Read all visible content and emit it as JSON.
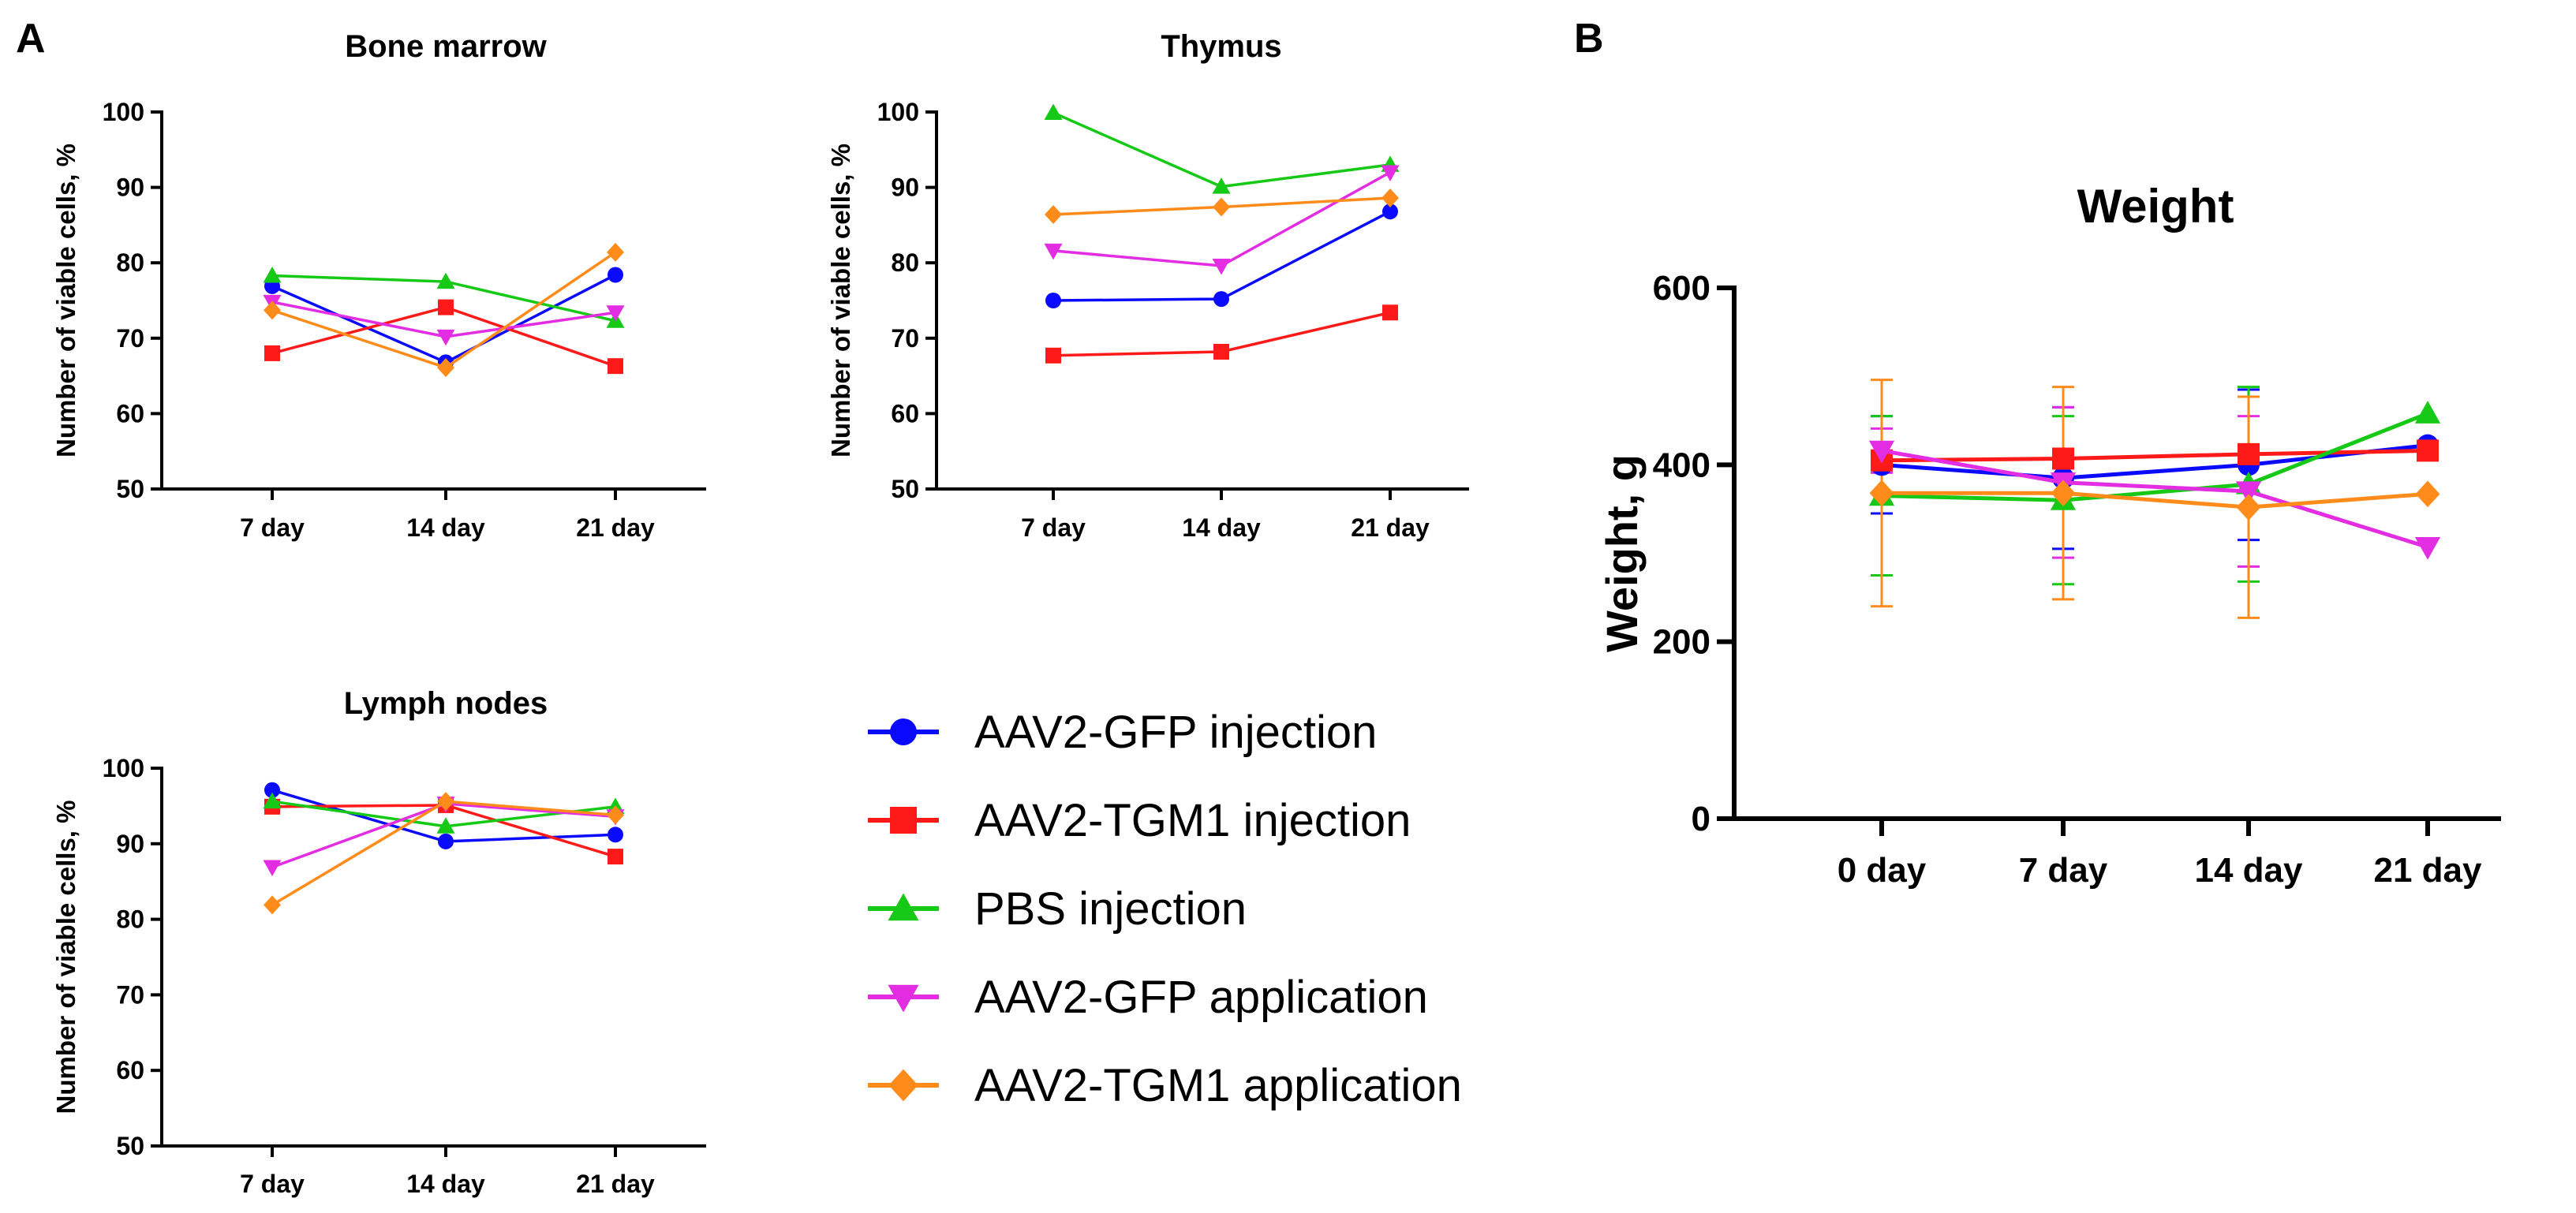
{
  "panels": {
    "a": "A",
    "b": "B"
  },
  "chart_data": [
    {
      "id": "bm",
      "type": "line",
      "title": "Bone marrow",
      "xlabel": "",
      "ylabel": "Number of viable cells, %",
      "categories": [
        "7 day",
        "14 day",
        "21 day"
      ],
      "ylim": [
        50,
        100
      ],
      "yticks": [
        50,
        60,
        70,
        80,
        90,
        100
      ],
      "series": [
        {
          "name": "AAV2-GFP injection",
          "values": [
            76.9,
            66.8,
            78.4
          ]
        },
        {
          "name": "AAV2-TGM1 injection",
          "values": [
            68.0,
            74.1,
            66.3
          ]
        },
        {
          "name": "PBS injection",
          "values": [
            78.3,
            77.5,
            72.3
          ]
        },
        {
          "name": "AAV2-GFP application",
          "values": [
            74.8,
            70.2,
            73.4
          ]
        },
        {
          "name": "AAV2-TGM1 application",
          "values": [
            73.7,
            66.1,
            81.4
          ]
        }
      ]
    },
    {
      "id": "th",
      "type": "line",
      "title": "Thymus",
      "xlabel": "",
      "ylabel": "Number of viable cells, %",
      "categories": [
        "7 day",
        "14 day",
        "21 day"
      ],
      "ylim": [
        50,
        100
      ],
      "yticks": [
        50,
        60,
        70,
        80,
        90,
        100
      ],
      "series": [
        {
          "name": "AAV2-GFP injection",
          "values": [
            75.0,
            75.2,
            86.8
          ]
        },
        {
          "name": "AAV2-TGM1 injection",
          "values": [
            67.7,
            68.2,
            73.4
          ]
        },
        {
          "name": "PBS injection",
          "values": [
            99.9,
            90.1,
            93.0
          ]
        },
        {
          "name": "AAV2-GFP application",
          "values": [
            81.6,
            79.6,
            92.0
          ]
        },
        {
          "name": "AAV2-TGM1 application",
          "values": [
            86.4,
            87.4,
            88.6
          ]
        }
      ]
    },
    {
      "id": "ln",
      "type": "line",
      "title": "Lymph nodes",
      "xlabel": "",
      "ylabel": "Number of viable cells, %",
      "categories": [
        "7 day",
        "14 day",
        "21 day"
      ],
      "ylim": [
        50,
        100
      ],
      "yticks": [
        50,
        60,
        70,
        80,
        90,
        100
      ],
      "series": [
        {
          "name": "AAV2-GFP injection",
          "values": [
            97.1,
            90.3,
            91.2
          ]
        },
        {
          "name": "AAV2-TGM1 injection",
          "values": [
            94.9,
            95.1,
            88.3
          ]
        },
        {
          "name": "PBS injection",
          "values": [
            95.6,
            92.3,
            94.9
          ]
        },
        {
          "name": "AAV2-GFP application",
          "values": [
            86.9,
            95.3,
            93.6
          ]
        },
        {
          "name": "AAV2-TGM1 application",
          "values": [
            81.9,
            95.6,
            93.8
          ]
        }
      ]
    },
    {
      "id": "wt",
      "type": "line",
      "title": "Weight",
      "xlabel": "",
      "ylabel": "Weight, g",
      "categories": [
        "0 day",
        "7 day",
        "14 day",
        "21 day"
      ],
      "ylim": [
        0,
        600
      ],
      "yticks": [
        0,
        200,
        400,
        600
      ],
      "series": [
        {
          "name": "AAV2-GFP injection",
          "values": [
            400,
            385,
            400,
            422
          ],
          "errors": [
            55,
            80,
            85,
            0
          ]
        },
        {
          "name": "AAV2-TGM1 injection",
          "values": [
            405,
            407,
            412,
            416
          ],
          "errors": [
            0,
            0,
            0,
            0
          ]
        },
        {
          "name": "PBS injection",
          "values": [
            365,
            360,
            378,
            458
          ],
          "errors": [
            90,
            95,
            110,
            0
          ]
        },
        {
          "name": "AAV2-GFP application",
          "values": [
            416,
            380,
            370,
            307
          ],
          "errors": [
            25,
            85,
            85,
            0
          ]
        },
        {
          "name": "AAV2-TGM1 application",
          "values": [
            368,
            368,
            352,
            367
          ],
          "errors": [
            128,
            120,
            125,
            0
          ]
        }
      ]
    }
  ],
  "legend": {
    "entries": [
      {
        "name": "AAV2-GFP injection",
        "color": "#0a0aff",
        "marker": "circle"
      },
      {
        "name": "AAV2-TGM1 injection",
        "color": "#ff1a1a",
        "marker": "square"
      },
      {
        "name": "PBS injection",
        "color": "#16c916",
        "marker": "triangle-up"
      },
      {
        "name": "AAV2-GFP application",
        "color": "#e32de3",
        "marker": "triangle-down"
      },
      {
        "name": "AAV2-TGM1 application",
        "color": "#ff8c1a",
        "marker": "diamond"
      }
    ]
  }
}
